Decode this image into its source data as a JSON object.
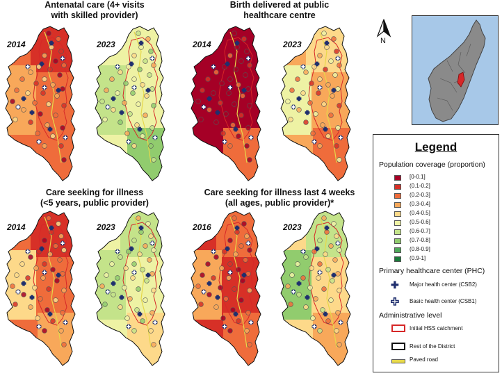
{
  "panels": [
    {
      "title_line1": "Antenatal care (4+ visits",
      "title_line2": "with skilled provider)",
      "year_left": "2014",
      "year_right": "2023"
    },
    {
      "title_line1": "Birth delivered at public",
      "title_line2": "healthcare centre",
      "year_left": "2014",
      "year_right": "2023"
    },
    {
      "title_line1": "Care seeking for illness",
      "title_line2": "(<5 years, public provider)",
      "year_left": "2014",
      "year_right": "2023"
    },
    {
      "title_line1": "Care seeking for illness last 4 weeks",
      "title_line2": "(all ages, public provider)*",
      "year_left": "2016",
      "year_right": "2023"
    }
  ],
  "north_label": "N",
  "legend": {
    "title": "Legend",
    "coverage_heading": "Population coverage (proportion)",
    "classes": [
      {
        "label": "[0-0.1]",
        "color": "#a50026"
      },
      {
        "label": "(0.1-0.2]",
        "color": "#d73027"
      },
      {
        "label": "(0.2-0.3]",
        "color": "#ef6c3b"
      },
      {
        "label": "(0.3-0.4]",
        "color": "#f8a85a"
      },
      {
        "label": "(0.4-0.5]",
        "color": "#fdd98a"
      },
      {
        "label": "(0.5-0.6]",
        "color": "#eef2a4"
      },
      {
        "label": "(0.6-0.7]",
        "color": "#c4e38a"
      },
      {
        "label": "(0.7-0.8]",
        "color": "#91cc6e"
      },
      {
        "label": "(0.8-0.9]",
        "color": "#4ea85a"
      },
      {
        "label": "(0.9-1]",
        "color": "#1a7a3a"
      }
    ],
    "phc_heading": "Primary healthcare center (PHC)",
    "major_label": "Major health center (CSB2)",
    "basic_label": "Basic health center (CSB1)",
    "admin_heading": "Administrative level",
    "hss_label": "Initial HSS catchment",
    "rest_label": "Rest of the District",
    "road_label": "Paved road",
    "hss_color": "#d62728",
    "rest_color": "#111111",
    "road_color": "#e6d84a",
    "major_color": "#1f2f6e"
  },
  "map_coverage": [
    {
      "base": 2,
      "north": 1,
      "south": 2,
      "west": 3
    },
    {
      "base": 5,
      "north": 5,
      "south": 7,
      "west": 6
    },
    {
      "base": 0,
      "north": 0,
      "south": 2,
      "west": 0
    },
    {
      "base": 3,
      "north": 4,
      "south": 2,
      "west": 5
    },
    {
      "base": 2,
      "north": 1,
      "south": 3,
      "west": 4
    },
    {
      "base": 5,
      "north": 6,
      "south": 4,
      "west": 6
    },
    {
      "base": 1,
      "north": 2,
      "south": 2,
      "west": 3
    },
    {
      "base": 4,
      "north": 6,
      "south": 3,
      "west": 7
    }
  ]
}
